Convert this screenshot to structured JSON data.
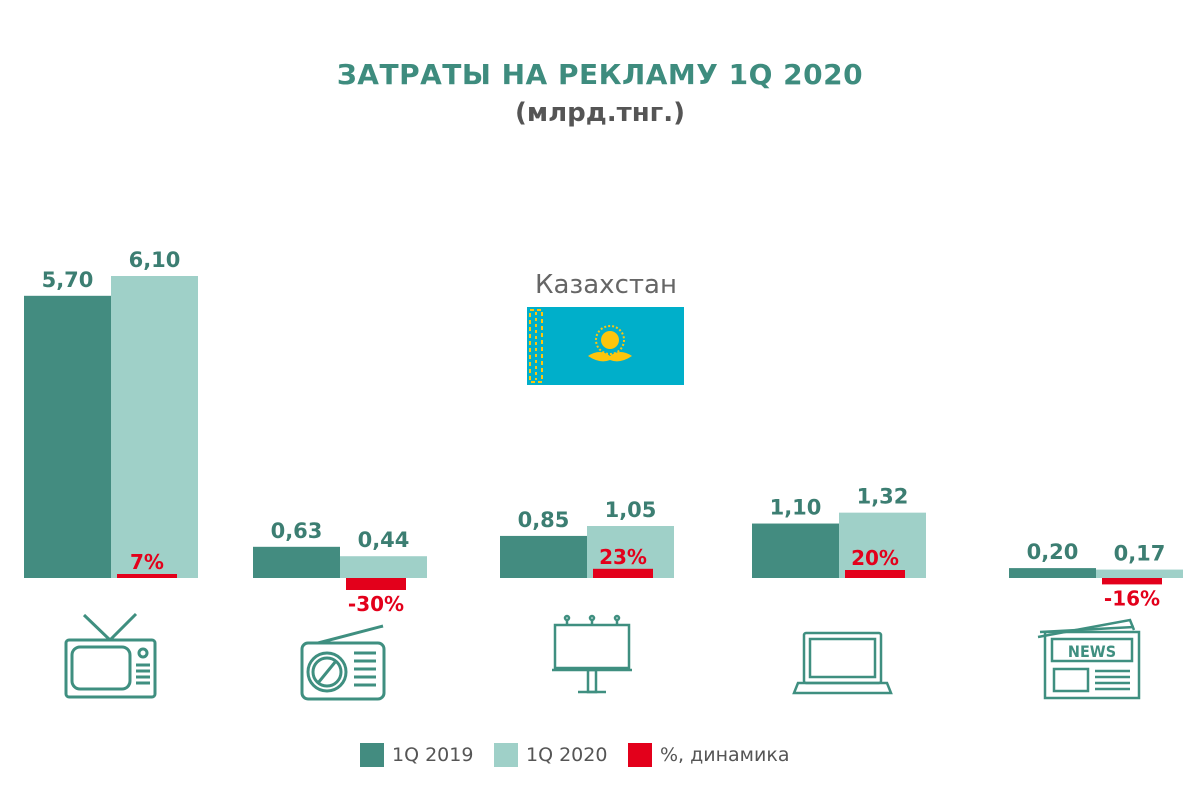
{
  "title": "ЗАТРАТЫ НА РЕКЛАМУ 1Q 2020",
  "subtitle": "(млрд.тнг.)",
  "country": "Казахстан",
  "colors": {
    "y2019": "#438c80",
    "y2020": "#9fd0c8",
    "change": "#e3001b",
    "icon": "#3f8f80"
  },
  "legend": [
    {
      "label": "1Q 2019",
      "color": "#438c80"
    },
    {
      "label": "1Q 2020",
      "color": "#9fd0c8"
    },
    {
      "label": "%, динамика",
      "color": "#e3001b"
    }
  ],
  "chart_data": {
    "type": "bar",
    "categories": [
      "tv",
      "radio",
      "outdoor",
      "internet",
      "press"
    ],
    "category_icons": [
      "tv-icon",
      "radio-icon",
      "billboard-icon",
      "laptop-icon",
      "newspaper-icon"
    ],
    "series": [
      {
        "name": "1Q 2019",
        "values": [
          5.7,
          0.63,
          0.85,
          1.1,
          0.2
        ],
        "labels": [
          "5,70",
          "0,63",
          "0,85",
          "1,10",
          "0,20"
        ]
      },
      {
        "name": "1Q 2020",
        "values": [
          6.1,
          0.44,
          1.05,
          1.32,
          0.17
        ],
        "labels": [
          "6,10",
          "0,44",
          "1,05",
          "1,32",
          "0,17"
        ]
      },
      {
        "name": "%, динамика",
        "values": [
          7,
          -30,
          23,
          20,
          -16
        ],
        "labels": [
          "7%",
          "-30%",
          "23%",
          "20%",
          "-16%"
        ]
      }
    ],
    "title": "ЗАТРАТЫ НА РЕКЛАМУ 1Q 2020",
    "ylabel": "",
    "xlabel": "",
    "ylim": [
      0,
      6.5
    ],
    "grid": false,
    "legend_position": "bottom",
    "newspaper_icon_text": "NEWS"
  }
}
